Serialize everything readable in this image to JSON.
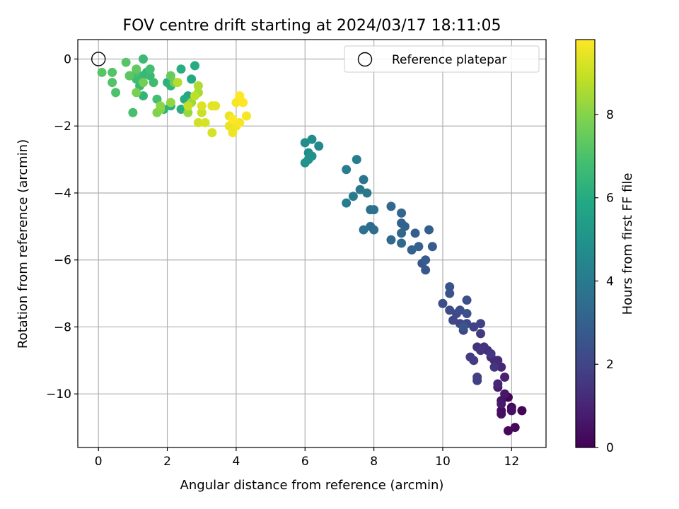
{
  "chart_data": {
    "type": "scatter",
    "title": "FOV centre drift starting at 2024/03/17 18:11:05",
    "xlabel": "Angular distance from reference (arcmin)",
    "ylabel": "Rotation from reference (arcmin)",
    "xlim": [
      -0.6,
      13.0
    ],
    "ylim": [
      -11.6,
      0.58
    ],
    "x_ticks": [
      0,
      2,
      4,
      6,
      8,
      10,
      12
    ],
    "y_ticks": [
      0,
      -2,
      -4,
      -6,
      -8,
      -10
    ],
    "x_tick_labels": [
      "0",
      "2",
      "4",
      "6",
      "8",
      "10",
      "12"
    ],
    "y_tick_labels": [
      "0",
      "−2",
      "−4",
      "−6",
      "−8",
      "−10"
    ],
    "grid": true,
    "legend": {
      "placement": "top-right",
      "entries": [
        "Reference platepar"
      ]
    },
    "reference_point": {
      "x": 0,
      "y": 0,
      "label": "Reference platepar"
    },
    "colorbar": {
      "label": "Hours from first FF file",
      "range": [
        0,
        9.8
      ],
      "ticks": [
        0,
        2,
        4,
        6,
        8
      ],
      "tick_labels": [
        "0",
        "2",
        "4",
        "6",
        "8"
      ],
      "colormap": "viridis"
    },
    "points": [
      {
        "x": 11.9,
        "y": -10.1,
        "t": 0.1
      },
      {
        "x": 12.3,
        "y": -10.5,
        "t": 0.1
      },
      {
        "x": 12.1,
        "y": -11.0,
        "t": 0.2
      },
      {
        "x": 11.9,
        "y": -11.1,
        "t": 0.2
      },
      {
        "x": 12.0,
        "y": -10.4,
        "t": 0.3
      },
      {
        "x": 11.7,
        "y": -10.5,
        "t": 0.3
      },
      {
        "x": 11.7,
        "y": -10.6,
        "t": 0.4
      },
      {
        "x": 12.0,
        "y": -10.5,
        "t": 0.4
      },
      {
        "x": 11.7,
        "y": -10.2,
        "t": 0.5
      },
      {
        "x": 11.8,
        "y": -10.0,
        "t": 0.6
      },
      {
        "x": 11.7,
        "y": -10.3,
        "t": 0.7
      },
      {
        "x": 11.6,
        "y": -9.8,
        "t": 0.8
      },
      {
        "x": 11.8,
        "y": -9.5,
        "t": 0.9
      },
      {
        "x": 11.6,
        "y": -9.7,
        "t": 1.0
      },
      {
        "x": 11.7,
        "y": -9.2,
        "t": 1.0
      },
      {
        "x": 11.5,
        "y": -9.0,
        "t": 1.1
      },
      {
        "x": 11.4,
        "y": -8.9,
        "t": 1.2
      },
      {
        "x": 11.6,
        "y": -9.0,
        "t": 1.2
      },
      {
        "x": 11.3,
        "y": -8.7,
        "t": 1.3
      },
      {
        "x": 11.2,
        "y": -8.6,
        "t": 1.4
      },
      {
        "x": 11.0,
        "y": -8.6,
        "t": 1.4
      },
      {
        "x": 11.5,
        "y": -9.2,
        "t": 1.5
      },
      {
        "x": 11.1,
        "y": -8.7,
        "t": 1.5
      },
      {
        "x": 11.4,
        "y": -8.8,
        "t": 1.6
      },
      {
        "x": 11.1,
        "y": -8.2,
        "t": 1.6
      },
      {
        "x": 10.8,
        "y": -8.9,
        "t": 1.7
      },
      {
        "x": 10.9,
        "y": -9.0,
        "t": 1.7
      },
      {
        "x": 11.0,
        "y": -9.5,
        "t": 1.8
      },
      {
        "x": 11.0,
        "y": -9.6,
        "t": 1.8
      },
      {
        "x": 11.1,
        "y": -7.9,
        "t": 1.9
      },
      {
        "x": 10.9,
        "y": -8.0,
        "t": 1.9
      },
      {
        "x": 10.6,
        "y": -8.1,
        "t": 2.0
      },
      {
        "x": 10.5,
        "y": -7.9,
        "t": 2.0
      },
      {
        "x": 10.7,
        "y": -7.9,
        "t": 2.1
      },
      {
        "x": 10.3,
        "y": -7.8,
        "t": 2.1
      },
      {
        "x": 10.4,
        "y": -7.6,
        "t": 2.2
      },
      {
        "x": 10.2,
        "y": -7.5,
        "t": 2.2
      },
      {
        "x": 10.0,
        "y": -7.3,
        "t": 2.3
      },
      {
        "x": 10.5,
        "y": -7.5,
        "t": 2.3
      },
      {
        "x": 10.7,
        "y": -7.6,
        "t": 2.4
      },
      {
        "x": 10.7,
        "y": -7.2,
        "t": 2.4
      },
      {
        "x": 10.2,
        "y": -7.0,
        "t": 2.5
      },
      {
        "x": 10.2,
        "y": -6.8,
        "t": 2.5
      },
      {
        "x": 10.6,
        "y": -8.0,
        "t": 2.6
      },
      {
        "x": 9.5,
        "y": -6.3,
        "t": 2.7
      },
      {
        "x": 9.4,
        "y": -6.1,
        "t": 2.7
      },
      {
        "x": 9.5,
        "y": -6.0,
        "t": 2.8
      },
      {
        "x": 9.7,
        "y": -5.6,
        "t": 2.8
      },
      {
        "x": 9.6,
        "y": -5.1,
        "t": 2.9
      },
      {
        "x": 9.2,
        "y": -5.2,
        "t": 2.9
      },
      {
        "x": 9.3,
        "y": -5.6,
        "t": 3.0
      },
      {
        "x": 9.1,
        "y": -5.7,
        "t": 3.0
      },
      {
        "x": 8.9,
        "y": -5.0,
        "t": 3.1
      },
      {
        "x": 8.8,
        "y": -4.9,
        "t": 3.1
      },
      {
        "x": 8.8,
        "y": -5.2,
        "t": 3.2
      },
      {
        "x": 8.8,
        "y": -4.6,
        "t": 3.2
      },
      {
        "x": 8.5,
        "y": -4.4,
        "t": 3.3
      },
      {
        "x": 8.5,
        "y": -5.4,
        "t": 3.3
      },
      {
        "x": 8.8,
        "y": -5.5,
        "t": 3.4
      },
      {
        "x": 7.9,
        "y": -5.0,
        "t": 3.5
      },
      {
        "x": 8.0,
        "y": -5.1,
        "t": 3.5
      },
      {
        "x": 7.7,
        "y": -5.1,
        "t": 3.6
      },
      {
        "x": 7.9,
        "y": -4.5,
        "t": 3.7
      },
      {
        "x": 8.0,
        "y": -4.5,
        "t": 3.7
      },
      {
        "x": 7.7,
        "y": -3.6,
        "t": 3.8
      },
      {
        "x": 7.8,
        "y": -4.0,
        "t": 3.9
      },
      {
        "x": 7.6,
        "y": -3.9,
        "t": 3.9
      },
      {
        "x": 7.4,
        "y": -4.1,
        "t": 4.0
      },
      {
        "x": 7.2,
        "y": -4.3,
        "t": 4.1
      },
      {
        "x": 7.2,
        "y": -3.3,
        "t": 4.1
      },
      {
        "x": 7.5,
        "y": -3.0,
        "t": 4.2
      },
      {
        "x": 6.4,
        "y": -2.6,
        "t": 4.6
      },
      {
        "x": 6.2,
        "y": -2.4,
        "t": 4.7
      },
      {
        "x": 6.0,
        "y": -2.5,
        "t": 4.7
      },
      {
        "x": 6.1,
        "y": -2.8,
        "t": 4.8
      },
      {
        "x": 6.2,
        "y": -2.9,
        "t": 4.9
      },
      {
        "x": 6.1,
        "y": -3.0,
        "t": 4.9
      },
      {
        "x": 6.0,
        "y": -3.1,
        "t": 5.0
      },
      {
        "x": 2.6,
        "y": -1.1,
        "t": 5.8
      },
      {
        "x": 2.7,
        "y": -0.6,
        "t": 5.9
      },
      {
        "x": 2.8,
        "y": -0.2,
        "t": 6.0
      },
      {
        "x": 2.5,
        "y": -1.2,
        "t": 6.0
      },
      {
        "x": 2.4,
        "y": -0.3,
        "t": 6.1
      },
      {
        "x": 2.4,
        "y": -1.5,
        "t": 6.1
      },
      {
        "x": 2.1,
        "y": -1.4,
        "t": 6.2
      },
      {
        "x": 2.0,
        "y": -0.7,
        "t": 6.2
      },
      {
        "x": 2.1,
        "y": -0.8,
        "t": 6.3
      },
      {
        "x": 1.9,
        "y": -1.5,
        "t": 6.3
      },
      {
        "x": 1.4,
        "y": -0.4,
        "t": 6.4
      },
      {
        "x": 1.3,
        "y": -1.1,
        "t": 6.4
      },
      {
        "x": 1.2,
        "y": -0.8,
        "t": 6.5
      },
      {
        "x": 1.3,
        "y": -0.5,
        "t": 6.5
      },
      {
        "x": 1.5,
        "y": -0.5,
        "t": 6.6
      },
      {
        "x": 1.3,
        "y": -0.0,
        "t": 6.6
      },
      {
        "x": 1.1,
        "y": -0.6,
        "t": 6.7
      },
      {
        "x": 1.6,
        "y": -0.7,
        "t": 6.7
      },
      {
        "x": 1.5,
        "y": -0.3,
        "t": 6.8
      },
      {
        "x": 1.7,
        "y": -1.2,
        "t": 6.8
      },
      {
        "x": 1.0,
        "y": -1.6,
        "t": 6.9
      },
      {
        "x": 1.1,
        "y": -0.4,
        "t": 6.9
      },
      {
        "x": 0.9,
        "y": -0.5,
        "t": 7.0
      },
      {
        "x": 0.5,
        "y": -1.0,
        "t": 7.0
      },
      {
        "x": 0.4,
        "y": -0.7,
        "t": 7.1
      },
      {
        "x": 0.4,
        "y": -0.4,
        "t": 7.1
      },
      {
        "x": 0.1,
        "y": -0.4,
        "t": 7.2
      },
      {
        "x": 0.8,
        "y": -0.1,
        "t": 7.2
      },
      {
        "x": 0.9,
        "y": -0.5,
        "t": 7.3
      },
      {
        "x": 1.1,
        "y": -0.3,
        "t": 7.4
      },
      {
        "x": 2.1,
        "y": -0.5,
        "t": 7.5
      },
      {
        "x": 2.2,
        "y": -0.7,
        "t": 7.6
      },
      {
        "x": 1.3,
        "y": -0.7,
        "t": 7.7
      },
      {
        "x": 1.1,
        "y": -1.0,
        "t": 7.8
      },
      {
        "x": 1.7,
        "y": -1.6,
        "t": 7.9
      },
      {
        "x": 1.8,
        "y": -1.5,
        "t": 8.0
      },
      {
        "x": 1.8,
        "y": -1.4,
        "t": 8.1
      },
      {
        "x": 2.1,
        "y": -1.3,
        "t": 8.2
      },
      {
        "x": 2.6,
        "y": -1.6,
        "t": 8.3
      },
      {
        "x": 2.7,
        "y": -1.3,
        "t": 8.4
      },
      {
        "x": 2.9,
        "y": -1.0,
        "t": 8.5
      },
      {
        "x": 2.9,
        "y": -0.8,
        "t": 8.6
      },
      {
        "x": 2.3,
        "y": -0.7,
        "t": 8.7
      },
      {
        "x": 2.8,
        "y": -1.1,
        "t": 8.8
      },
      {
        "x": 2.6,
        "y": -1.4,
        "t": 8.9
      },
      {
        "x": 3.0,
        "y": -1.6,
        "t": 9.0
      },
      {
        "x": 2.9,
        "y": -1.9,
        "t": 9.1
      },
      {
        "x": 3.1,
        "y": -1.9,
        "t": 9.2
      },
      {
        "x": 3.3,
        "y": -2.2,
        "t": 9.2
      },
      {
        "x": 3.0,
        "y": -1.4,
        "t": 9.3
      },
      {
        "x": 3.3,
        "y": -1.4,
        "t": 9.4
      },
      {
        "x": 3.4,
        "y": -1.4,
        "t": 9.4
      },
      {
        "x": 3.8,
        "y": -2.0,
        "t": 9.5
      },
      {
        "x": 3.8,
        "y": -1.7,
        "t": 9.5
      },
      {
        "x": 3.9,
        "y": -2.2,
        "t": 9.6
      },
      {
        "x": 4.0,
        "y": -2.0,
        "t": 9.6
      },
      {
        "x": 4.1,
        "y": -1.9,
        "t": 9.7
      },
      {
        "x": 4.3,
        "y": -1.7,
        "t": 9.7
      },
      {
        "x": 4.0,
        "y": -1.3,
        "t": 9.7
      },
      {
        "x": 4.1,
        "y": -1.1,
        "t": 9.8
      },
      {
        "x": 4.2,
        "y": -1.3,
        "t": 9.8
      },
      {
        "x": 3.9,
        "y": -1.8,
        "t": 9.8
      }
    ]
  }
}
